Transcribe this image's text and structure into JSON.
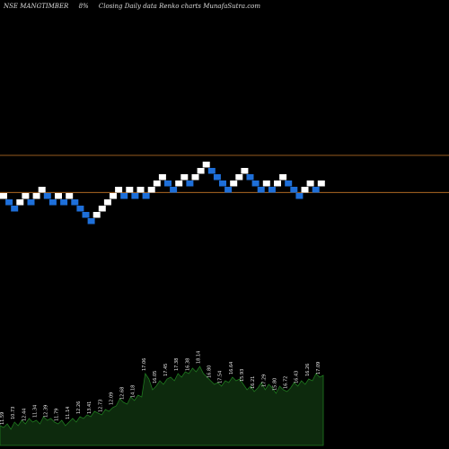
{
  "header": {
    "symbol": "NSE MANGTIMBER",
    "change": "8% ",
    "caption": "Closing Daily data  Renko  charts MunafaSutra.com"
  },
  "colors": {
    "background": "#000000",
    "up_brick": "#ffffff",
    "down_brick": "#1e6fd9",
    "resistance_line": "#c87828",
    "volume_fill": "#0d2a0d",
    "volume_stroke": "#1f7a1f",
    "label_text": "#e8e8e8"
  },
  "chart_data": {
    "type": "renko",
    "title": "NSE MANGTIMBER",
    "bricks": [
      {
        "level": 0,
        "dir": "up"
      },
      {
        "level": -1,
        "dir": "down"
      },
      {
        "level": -2,
        "dir": "down"
      },
      {
        "level": -1,
        "dir": "up"
      },
      {
        "level": 0,
        "dir": "up"
      },
      {
        "level": -1,
        "dir": "down"
      },
      {
        "level": 0,
        "dir": "up"
      },
      {
        "level": 1,
        "dir": "up"
      },
      {
        "level": 0,
        "dir": "down"
      },
      {
        "level": -1,
        "dir": "down"
      },
      {
        "level": 0,
        "dir": "up"
      },
      {
        "level": -1,
        "dir": "down"
      },
      {
        "level": 0,
        "dir": "up"
      },
      {
        "level": -1,
        "dir": "down"
      },
      {
        "level": -2,
        "dir": "down"
      },
      {
        "level": -3,
        "dir": "down"
      },
      {
        "level": -4,
        "dir": "down"
      },
      {
        "level": -3,
        "dir": "up"
      },
      {
        "level": -2,
        "dir": "up"
      },
      {
        "level": -1,
        "dir": "up"
      },
      {
        "level": 0,
        "dir": "up"
      },
      {
        "level": 1,
        "dir": "up"
      },
      {
        "level": 0,
        "dir": "down"
      },
      {
        "level": 1,
        "dir": "up"
      },
      {
        "level": 0,
        "dir": "down"
      },
      {
        "level": 1,
        "dir": "up"
      },
      {
        "level": 0,
        "dir": "down"
      },
      {
        "level": 1,
        "dir": "up"
      },
      {
        "level": 2,
        "dir": "up"
      },
      {
        "level": 3,
        "dir": "up"
      },
      {
        "level": 2,
        "dir": "down"
      },
      {
        "level": 1,
        "dir": "down"
      },
      {
        "level": 2,
        "dir": "up"
      },
      {
        "level": 3,
        "dir": "up"
      },
      {
        "level": 2,
        "dir": "down"
      },
      {
        "level": 3,
        "dir": "up"
      },
      {
        "level": 4,
        "dir": "up"
      },
      {
        "level": 5,
        "dir": "up"
      },
      {
        "level": 4,
        "dir": "down"
      },
      {
        "level": 3,
        "dir": "down"
      },
      {
        "level": 2,
        "dir": "down"
      },
      {
        "level": 1,
        "dir": "down"
      },
      {
        "level": 2,
        "dir": "up"
      },
      {
        "level": 3,
        "dir": "up"
      },
      {
        "level": 4,
        "dir": "up"
      },
      {
        "level": 3,
        "dir": "down"
      },
      {
        "level": 2,
        "dir": "down"
      },
      {
        "level": 1,
        "dir": "down"
      },
      {
        "level": 2,
        "dir": "up"
      },
      {
        "level": 1,
        "dir": "down"
      },
      {
        "level": 2,
        "dir": "up"
      },
      {
        "level": 3,
        "dir": "up"
      },
      {
        "level": 2,
        "dir": "down"
      },
      {
        "level": 1,
        "dir": "down"
      },
      {
        "level": 0,
        "dir": "down"
      },
      {
        "level": 1,
        "dir": "up"
      },
      {
        "level": 2,
        "dir": "up"
      },
      {
        "level": 1,
        "dir": "down"
      },
      {
        "level": 2,
        "dir": "up"
      }
    ],
    "resistance_levels": [
      6.5,
      0.6
    ],
    "volume": {
      "y": [
        11,
        10,
        12,
        9,
        13,
        11,
        14,
        12,
        15,
        13,
        14,
        12,
        16,
        14,
        15,
        13,
        12,
        14,
        11,
        13,
        15,
        13,
        16,
        15,
        17,
        16,
        19,
        18,
        17,
        20,
        19,
        21,
        22,
        26,
        24,
        23,
        27,
        25,
        28,
        27,
        40,
        37,
        31,
        33,
        36,
        34,
        37,
        38,
        36,
        40,
        38,
        41,
        40,
        43,
        41,
        44,
        40,
        38,
        36,
        34,
        35,
        33,
        36,
        35,
        38,
        36,
        37,
        34,
        31,
        33,
        30,
        32,
        35,
        31,
        34,
        32,
        29,
        33,
        31,
        30,
        32,
        35,
        33,
        36,
        34,
        37,
        36,
        40,
        38,
        39
      ],
      "ylim": [
        0,
        50
      ],
      "labels": [
        {
          "i": 1,
          "text": "11.59"
        },
        {
          "i": 4,
          "text": "10.73"
        },
        {
          "i": 7,
          "text": "12.44"
        },
        {
          "i": 10,
          "text": "11.34"
        },
        {
          "i": 13,
          "text": "12.39"
        },
        {
          "i": 16,
          "text": "11.79"
        },
        {
          "i": 19,
          "text": "11.14"
        },
        {
          "i": 22,
          "text": "12.26"
        },
        {
          "i": 25,
          "text": "13.41"
        },
        {
          "i": 28,
          "text": "12.73"
        },
        {
          "i": 31,
          "text": "12.09"
        },
        {
          "i": 34,
          "text": "12.68"
        },
        {
          "i": 37,
          "text": "14.18"
        },
        {
          "i": 40,
          "text": "17.06"
        },
        {
          "i": 43,
          "text": "16.05"
        },
        {
          "i": 46,
          "text": "17.45"
        },
        {
          "i": 49,
          "text": "17.38"
        },
        {
          "i": 52,
          "text": "16.38"
        },
        {
          "i": 55,
          "text": "18.14"
        },
        {
          "i": 58,
          "text": "16.80"
        },
        {
          "i": 61,
          "text": "17.54"
        },
        {
          "i": 64,
          "text": "16.64"
        },
        {
          "i": 67,
          "text": "15.93"
        },
        {
          "i": 70,
          "text": "16.21"
        },
        {
          "i": 73,
          "text": "17.29"
        },
        {
          "i": 76,
          "text": "15.80"
        },
        {
          "i": 79,
          "text": "16.72"
        },
        {
          "i": 82,
          "text": "16.43"
        },
        {
          "i": 85,
          "text": "16.26"
        },
        {
          "i": 88,
          "text": "17.09"
        }
      ]
    }
  }
}
